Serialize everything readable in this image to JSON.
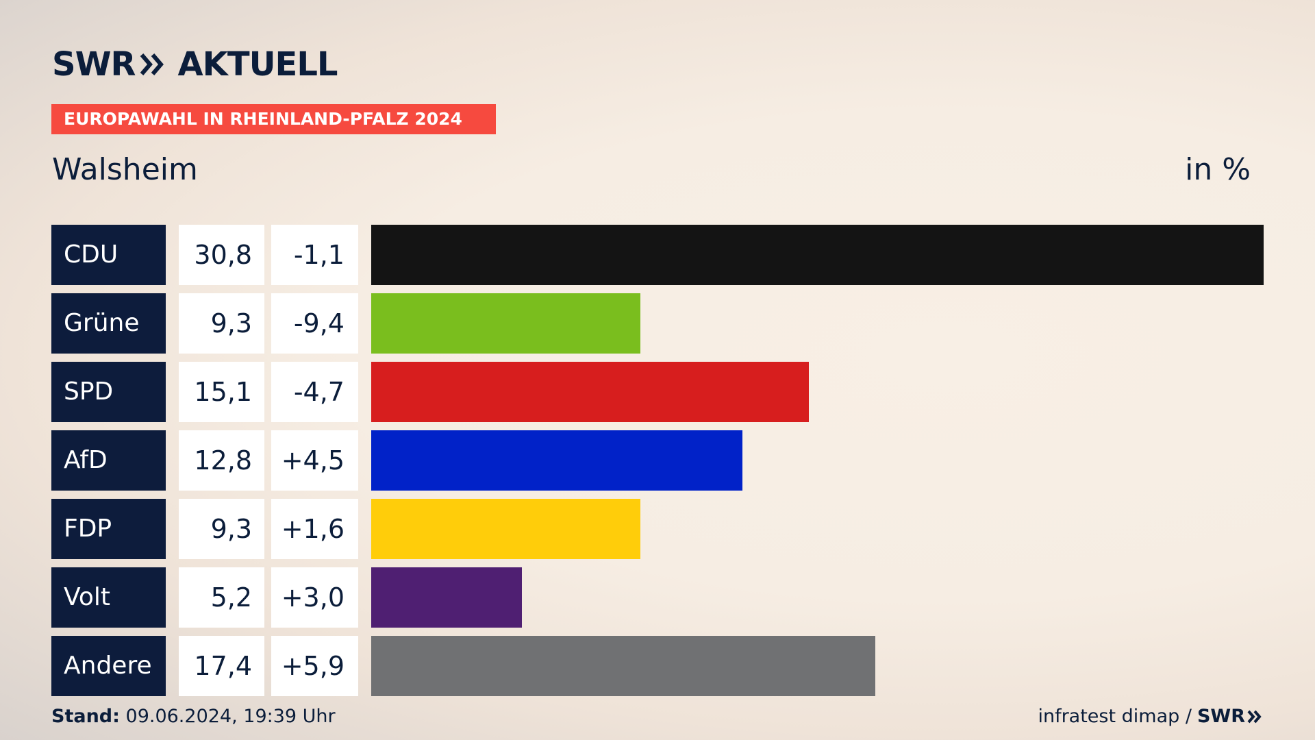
{
  "brand": {
    "name_part1": "SWR",
    "name_part2": "AKTUELL",
    "arrows_icon": "double-chevron-right-icon"
  },
  "banner": {
    "text": "EUROPAWAHL IN RHEINLAND-PFALZ 2024",
    "color": "#f64a3f"
  },
  "place": "Walsheim",
  "unit": "in %",
  "chart_data": {
    "type": "bar",
    "orientation": "horizontal",
    "title": "Walsheim",
    "unit": "in %",
    "categories": [
      "CDU",
      "Grüne",
      "SPD",
      "AfD",
      "FDP",
      "Volt",
      "Andere"
    ],
    "values": [
      30.8,
      9.3,
      15.1,
      12.8,
      9.3,
      5.2,
      17.4
    ],
    "values_display": [
      "30,8",
      "9,3",
      "15,1",
      "12,8",
      "9,3",
      "5,2",
      "17,4"
    ],
    "changes": [
      -1.1,
      -9.4,
      -4.7,
      4.5,
      1.6,
      3.0,
      5.9
    ],
    "changes_display": [
      "-1,1",
      "-9,4",
      "-4,7",
      "+4,5",
      "+1,6",
      "+3,0",
      "+5,9"
    ],
    "colors": [
      "#141414",
      "#7abe1e",
      "#d71e1e",
      "#0122c8",
      "#ffcd0a",
      "#4f1f72",
      "#707173"
    ],
    "xlim": [
      0,
      30.8
    ]
  },
  "footer": {
    "stand_label": "Stand:",
    "stand_value": "09.06.2024, 19:39 Uhr",
    "source": "infratest dimap /",
    "source_logo": "SWR",
    "source_logo_icon": "double-chevron-right-icon"
  }
}
